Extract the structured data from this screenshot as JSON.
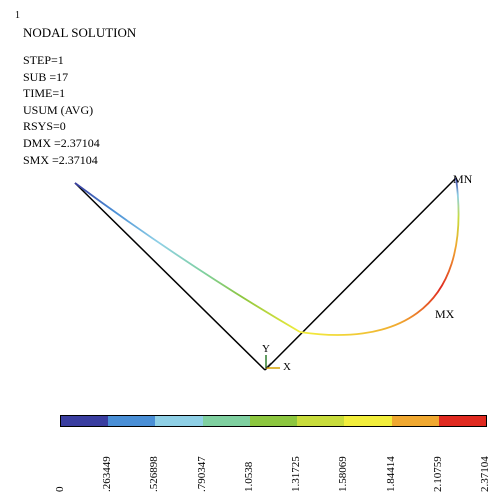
{
  "figure_number": "1",
  "title": "NODAL SOLUTION",
  "info_lines": [
    "STEP=1",
    "SUB =17",
    "TIME=1",
    "USUM (AVG)",
    "RSYS=0",
    "DMX =2.37104",
    "SMX =2.37104"
  ],
  "labels": {
    "mn": "MN",
    "mx": "MX",
    "axis_y": "Y",
    "axis_x": "X"
  },
  "legend": {
    "colors": [
      "#3a3ea0",
      "#4a8fd6",
      "#8fd0e6",
      "#7fd0a0",
      "#8cc63f",
      "#c8dc3c",
      "#f2ee3c",
      "#f0a830",
      "#e02a20"
    ],
    "tick_labels": [
      "0",
      ".263449",
      ".526898",
      ".790347",
      "1.0538",
      "1.31725",
      "1.58069",
      "1.84414",
      "2.10759",
      "2.37104"
    ]
  }
}
